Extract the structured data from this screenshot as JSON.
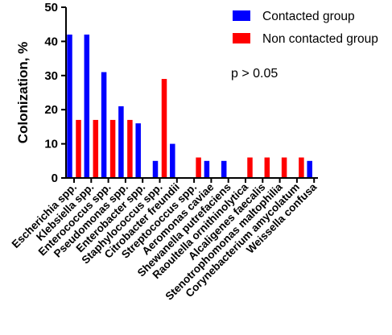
{
  "chart_data": {
    "type": "bar",
    "title": "",
    "xlabel": "",
    "ylabel": "Colonization, %",
    "ylim": [
      0,
      50
    ],
    "yticks": [
      0,
      10,
      20,
      30,
      40,
      50
    ],
    "grid": false,
    "legend_position": "top-right",
    "annotation": "p > 0.05",
    "categories": [
      "Escherichia spp.",
      "Klebsiella spp.",
      "Enterococcus spp.",
      "Pseudomonas spp.",
      "Enterobacter spp.",
      "Staphylococcus spp.",
      "Citrobacter freundii",
      "Streptococcus spp.",
      "Aeromonas caviae",
      "Shewanella putrefaciens",
      "Raoultella ornithinolytica",
      "Alcaligenes faecalis",
      "Stenotrophomonas maltophilia",
      "Corynebacterium amycolatum",
      "Weissella confusa"
    ],
    "series": [
      {
        "name": "Contacted group",
        "color": "#0000ff",
        "values": [
          42,
          42,
          31,
          21,
          16,
          5,
          10,
          0,
          5,
          5,
          0,
          0,
          0,
          0,
          5
        ]
      },
      {
        "name": "Non contacted group",
        "color": "#ff0000",
        "values": [
          17,
          17,
          17,
          17,
          0,
          29,
          0,
          6,
          0,
          0,
          6,
          6,
          6,
          6,
          0
        ]
      }
    ]
  }
}
